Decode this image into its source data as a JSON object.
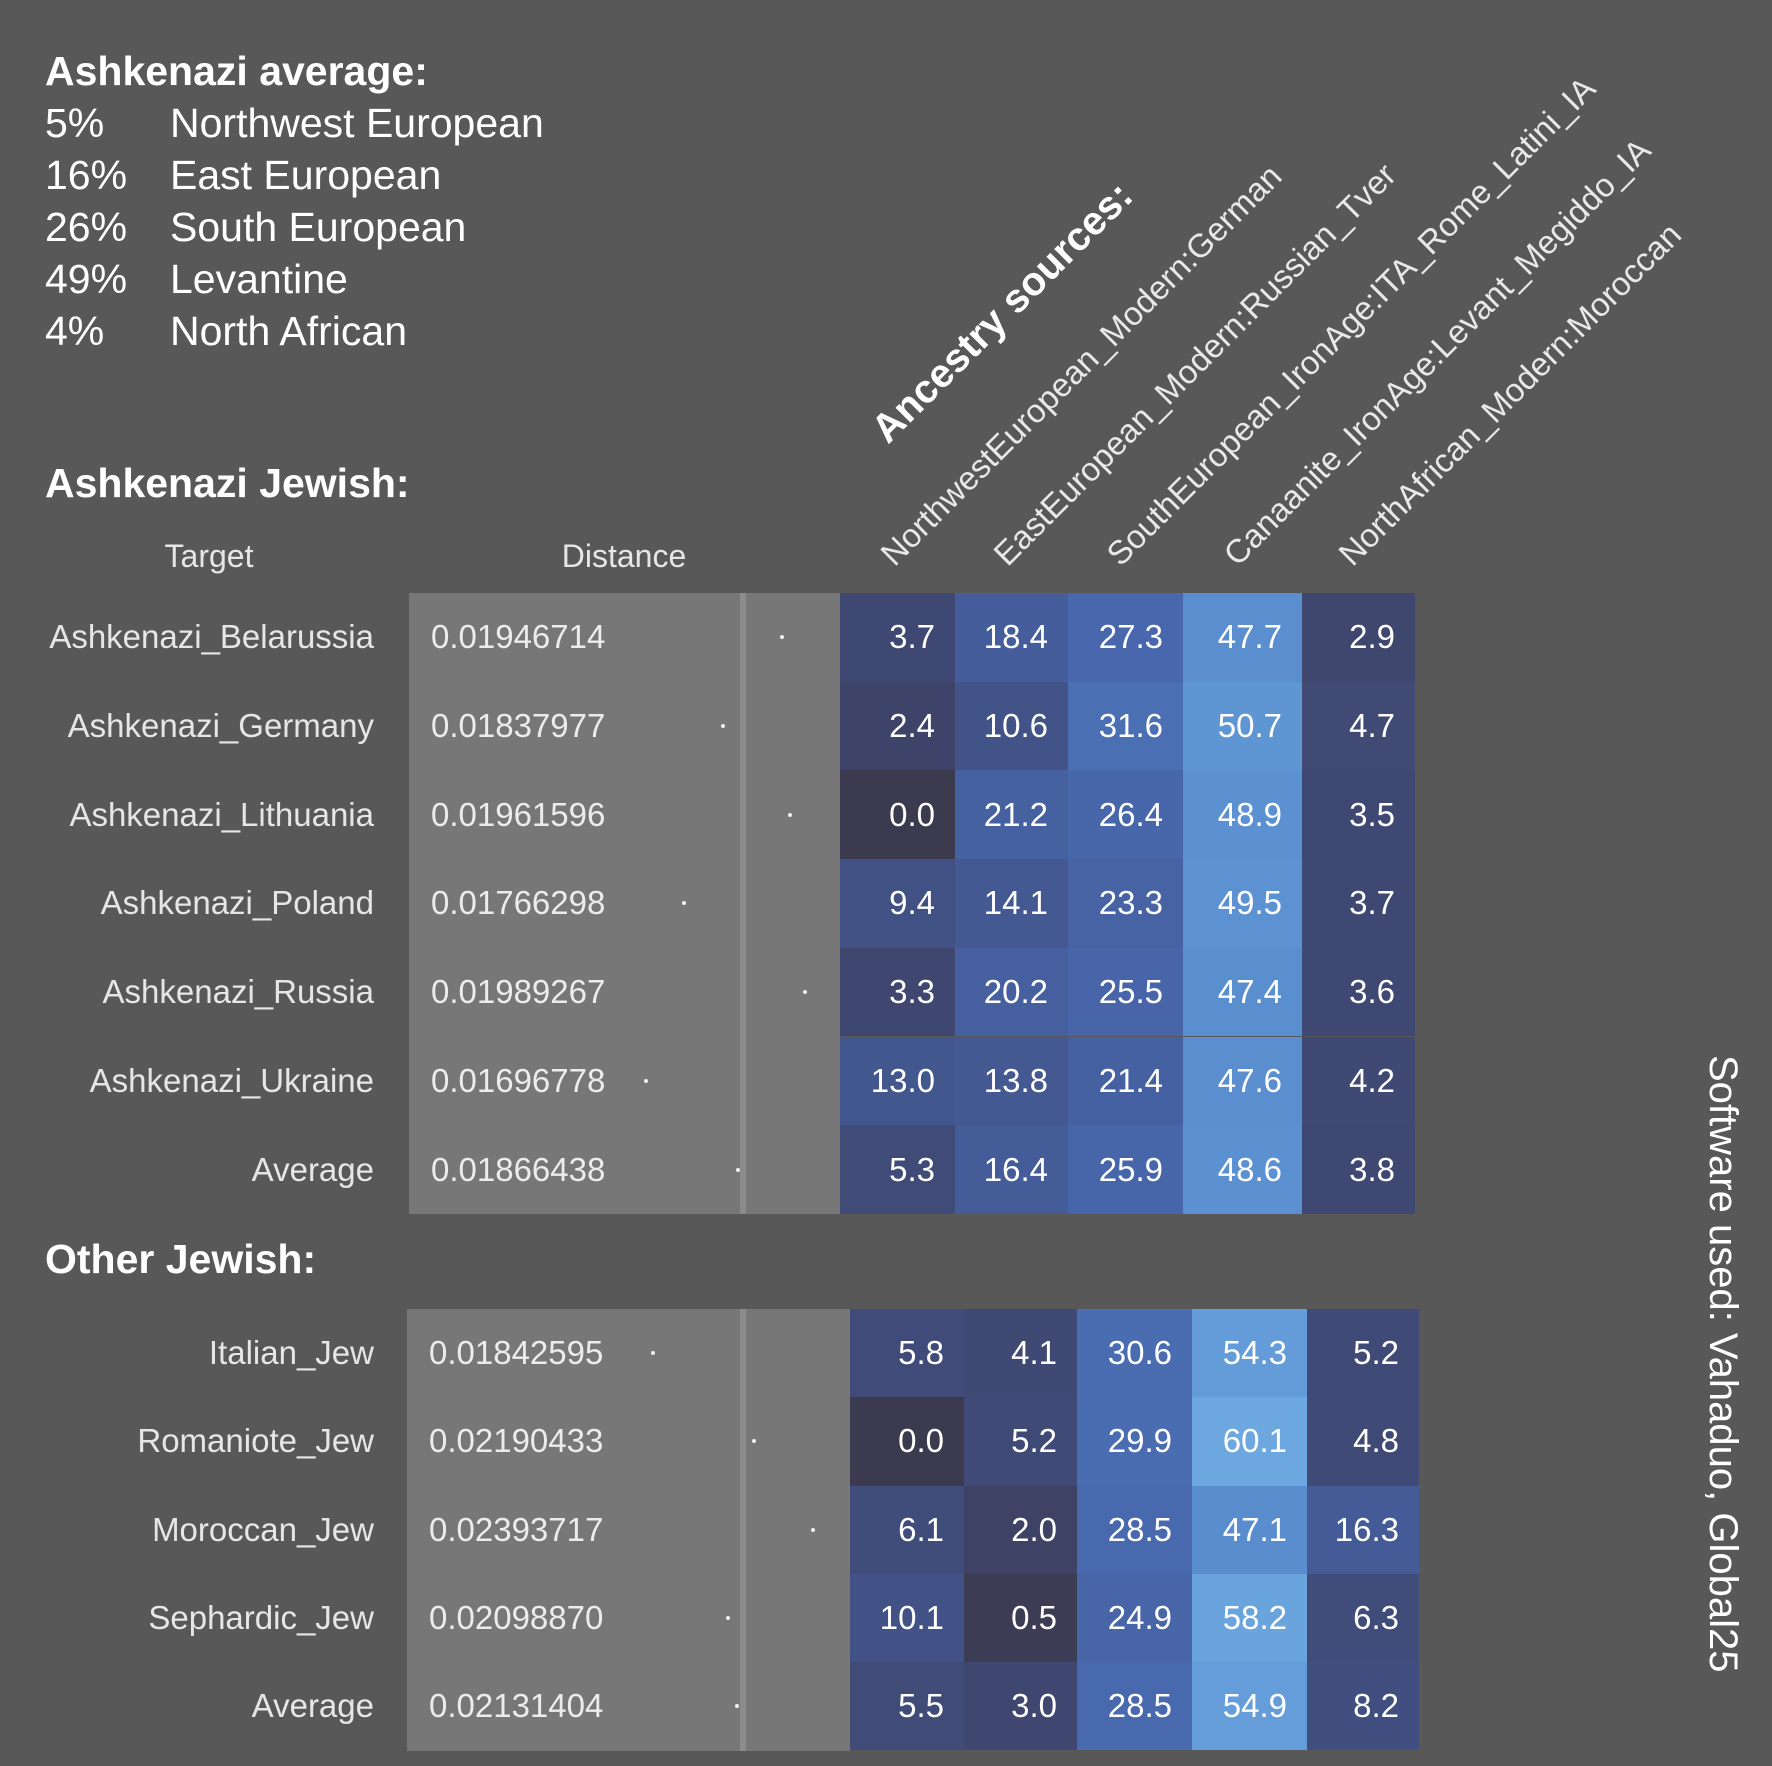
{
  "summary": {
    "title": "Ashkenazi average:",
    "items": [
      {
        "pct": "5%",
        "label": "Northwest European"
      },
      {
        "pct": "16%",
        "label": "East European"
      },
      {
        "pct": "26%",
        "label": "South European"
      },
      {
        "pct": "49%",
        "label": "Levantine"
      },
      {
        "pct": "4%",
        "label": "North African"
      }
    ]
  },
  "sources_title": "Ancestry sources:",
  "software_note": "Software used: Vahaduo, Global25",
  "colors": {
    "background": "#585858",
    "distance_panel": "#777777",
    "heat_low": "#3b3a4e",
    "heat_high": "#6ca8df"
  },
  "chart_data": {
    "type": "heatmap",
    "columns_header": {
      "target": "Target",
      "distance": "Distance"
    },
    "sources": [
      "NorthwestEuropean_Modern:German",
      "EastEuropean_Modern:Russian_Tver",
      "SouthEuropean_IronAge:ITA_Rome_Latini_IA",
      "Canaanite_IronAge:Levant_Megiddo_IA",
      "NorthAfrican_Modern:Moroccan"
    ],
    "groups": [
      {
        "title": "Ashkenazi Jewish:",
        "rows": [
          {
            "target": "Ashkenazi_Belarussia",
            "distance": "0.01946714",
            "values": [
              "3.7",
              "18.4",
              "27.3",
              "47.7",
              "2.9"
            ]
          },
          {
            "target": "Ashkenazi_Germany",
            "distance": "0.01837977",
            "values": [
              "2.4",
              "10.6",
              "31.6",
              "50.7",
              "4.7"
            ]
          },
          {
            "target": "Ashkenazi_Lithuania",
            "distance": "0.01961596",
            "values": [
              "0.0",
              "21.2",
              "26.4",
              "48.9",
              "3.5"
            ]
          },
          {
            "target": "Ashkenazi_Poland",
            "distance": "0.01766298",
            "values": [
              "9.4",
              "14.1",
              "23.3",
              "49.5",
              "3.7"
            ]
          },
          {
            "target": "Ashkenazi_Russia",
            "distance": "0.01989267",
            "values": [
              "3.3",
              "20.2",
              "25.5",
              "47.4",
              "3.6"
            ]
          },
          {
            "target": "Ashkenazi_Ukraine",
            "distance": "0.01696778",
            "values": [
              "13.0",
              "13.8",
              "21.4",
              "47.6",
              "4.2"
            ]
          },
          {
            "target": "Average",
            "distance": "0.01866438",
            "values": [
              "5.3",
              "16.4",
              "25.9",
              "48.6",
              "3.8"
            ]
          }
        ]
      },
      {
        "title": "Other Jewish:",
        "rows": [
          {
            "target": "Italian_Jew",
            "distance": "0.01842595",
            "values": [
              "5.8",
              "4.1",
              "30.6",
              "54.3",
              "5.2"
            ]
          },
          {
            "target": "Romaniote_Jew",
            "distance": "0.02190433",
            "values": [
              "0.0",
              "5.2",
              "29.9",
              "60.1",
              "4.8"
            ]
          },
          {
            "target": "Moroccan_Jew",
            "distance": "0.02393717",
            "values": [
              "6.1",
              "2.0",
              "28.5",
              "47.1",
              "16.3"
            ]
          },
          {
            "target": "Sephardic_Jew",
            "distance": "0.02098870",
            "values": [
              "10.1",
              "0.5",
              "24.9",
              "58.2",
              "6.3"
            ]
          },
          {
            "target": "Average",
            "distance": "0.02131404",
            "values": [
              "5.5",
              "3.0",
              "28.5",
              "54.9",
              "8.2"
            ]
          }
        ]
      }
    ]
  }
}
